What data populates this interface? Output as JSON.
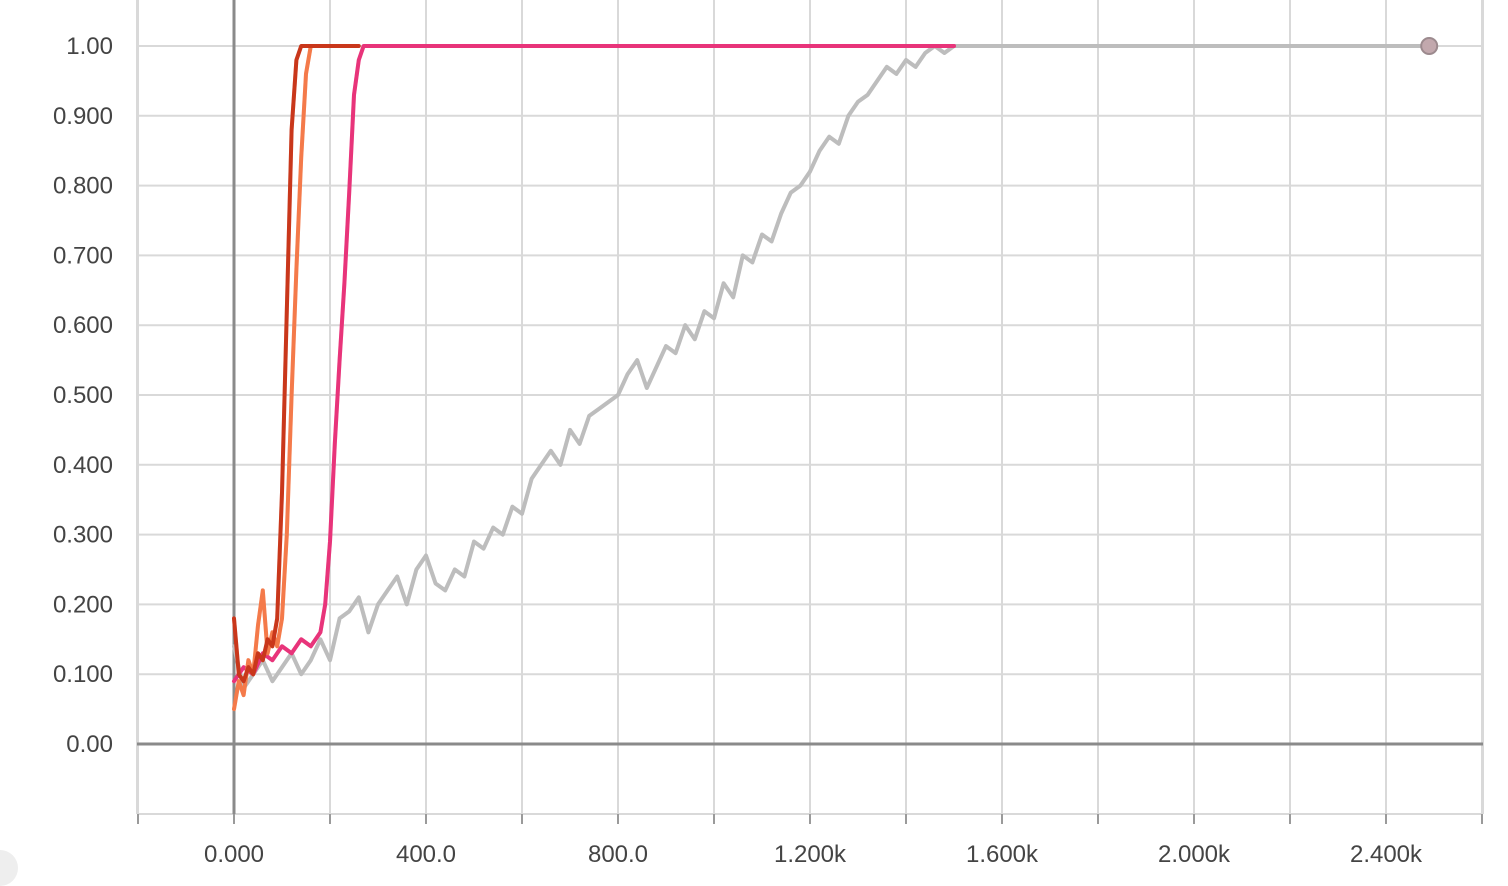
{
  "chart_data": {
    "type": "line",
    "title": "",
    "xlabel": "",
    "ylabel": "",
    "xlim": [
      -500,
      2600
    ],
    "ylim": [
      -0.1,
      1.05
    ],
    "grid": true,
    "legend": "none",
    "x_ticks": [
      {
        "value": 0,
        "label": "0.000"
      },
      {
        "value": 400,
        "label": "400.0"
      },
      {
        "value": 800,
        "label": "800.0"
      },
      {
        "value": 1200,
        "label": "1.200k"
      },
      {
        "value": 1600,
        "label": "1.600k"
      },
      {
        "value": 2000,
        "label": "2.000k"
      },
      {
        "value": 2400,
        "label": "2.400k"
      }
    ],
    "y_ticks": [
      {
        "value": 0,
        "label": "0.00"
      },
      {
        "value": 0.1,
        "label": "0.100"
      },
      {
        "value": 0.2,
        "label": "0.200"
      },
      {
        "value": 0.3,
        "label": "0.300"
      },
      {
        "value": 0.4,
        "label": "0.400"
      },
      {
        "value": 0.5,
        "label": "0.500"
      },
      {
        "value": 0.6,
        "label": "0.600"
      },
      {
        "value": 0.7,
        "label": "0.700"
      },
      {
        "value": 0.8,
        "label": "0.800"
      },
      {
        "value": 0.9,
        "label": "0.900"
      },
      {
        "value": 1.0,
        "label": "1.00"
      }
    ],
    "series": [
      {
        "color": "#bdbdbd",
        "x": [
          0,
          20,
          40,
          60,
          80,
          100,
          120,
          140,
          160,
          180,
          200,
          220,
          240,
          260,
          280,
          300,
          320,
          340,
          360,
          380,
          400,
          420,
          440,
          460,
          480,
          500,
          520,
          540,
          560,
          580,
          600,
          620,
          640,
          660,
          680,
          700,
          720,
          740,
          760,
          780,
          800,
          820,
          840,
          860,
          880,
          900,
          920,
          940,
          960,
          980,
          1000,
          1020,
          1040,
          1060,
          1080,
          1100,
          1120,
          1140,
          1160,
          1180,
          1200,
          1220,
          1240,
          1260,
          1280,
          1300,
          1320,
          1340,
          1360,
          1380,
          1400,
          1420,
          1440,
          1460,
          1480,
          1500,
          1520,
          1540,
          1560,
          1600,
          1800,
          2000,
          2200,
          2400,
          2490
        ],
        "y": [
          0.14,
          0.08,
          0.1,
          0.12,
          0.09,
          0.11,
          0.13,
          0.1,
          0.12,
          0.15,
          0.12,
          0.18,
          0.19,
          0.21,
          0.16,
          0.2,
          0.22,
          0.24,
          0.2,
          0.25,
          0.27,
          0.23,
          0.22,
          0.25,
          0.24,
          0.29,
          0.28,
          0.31,
          0.3,
          0.34,
          0.33,
          0.38,
          0.4,
          0.42,
          0.4,
          0.45,
          0.43,
          0.47,
          0.48,
          0.49,
          0.5,
          0.53,
          0.55,
          0.51,
          0.54,
          0.57,
          0.56,
          0.6,
          0.58,
          0.62,
          0.61,
          0.66,
          0.64,
          0.7,
          0.69,
          0.73,
          0.72,
          0.76,
          0.79,
          0.8,
          0.82,
          0.85,
          0.87,
          0.86,
          0.9,
          0.92,
          0.93,
          0.95,
          0.97,
          0.96,
          0.98,
          0.97,
          0.99,
          1.0,
          0.99,
          1.0,
          1.0,
          1.0,
          1.0,
          1.0,
          1.0,
          1.0,
          1.0,
          1.0,
          1.0
        ]
      },
      {
        "color": "#e8347a",
        "x": [
          0,
          20,
          40,
          60,
          80,
          100,
          120,
          140,
          160,
          180,
          190,
          200,
          210,
          220,
          230,
          240,
          250,
          260,
          270,
          280,
          400,
          800,
          1200,
          1500
        ],
        "y": [
          0.09,
          0.11,
          0.1,
          0.13,
          0.12,
          0.14,
          0.13,
          0.15,
          0.14,
          0.16,
          0.2,
          0.29,
          0.43,
          0.55,
          0.66,
          0.79,
          0.93,
          0.98,
          1.0,
          1.0,
          1.0,
          1.0,
          1.0,
          1.0
        ]
      },
      {
        "color": "#f47a4a",
        "x": [
          0,
          10,
          20,
          30,
          40,
          50,
          60,
          70,
          80,
          90,
          100,
          110,
          120,
          130,
          140,
          150,
          160,
          170,
          200
        ],
        "y": [
          0.05,
          0.09,
          0.07,
          0.12,
          0.1,
          0.17,
          0.22,
          0.13,
          0.16,
          0.14,
          0.18,
          0.3,
          0.5,
          0.68,
          0.84,
          0.96,
          1.0,
          1.0,
          1.0
        ]
      },
      {
        "color": "#c9371b",
        "x": [
          0,
          10,
          20,
          30,
          40,
          50,
          60,
          70,
          80,
          90,
          100,
          110,
          120,
          130,
          140,
          150,
          160,
          200,
          260
        ],
        "y": [
          0.18,
          0.1,
          0.09,
          0.11,
          0.1,
          0.13,
          0.12,
          0.15,
          0.14,
          0.18,
          0.36,
          0.62,
          0.88,
          0.98,
          1.0,
          1.0,
          1.0,
          1.0,
          1.0
        ]
      }
    ],
    "end_marker": {
      "x": 2490,
      "y": 1.0,
      "color": "#c2a8ad"
    }
  }
}
